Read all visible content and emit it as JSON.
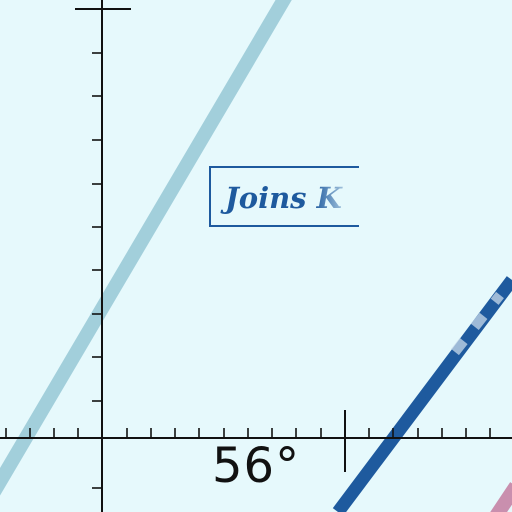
{
  "callout": {
    "text": "Joins K"
  },
  "angle": {
    "label": "56°"
  },
  "colors": {
    "background": "#e6f9fc",
    "axis": "#111111",
    "light_line": "#a2cfdb",
    "dark_line": "#1e5a9e",
    "pink_line": "#c98fae"
  }
}
